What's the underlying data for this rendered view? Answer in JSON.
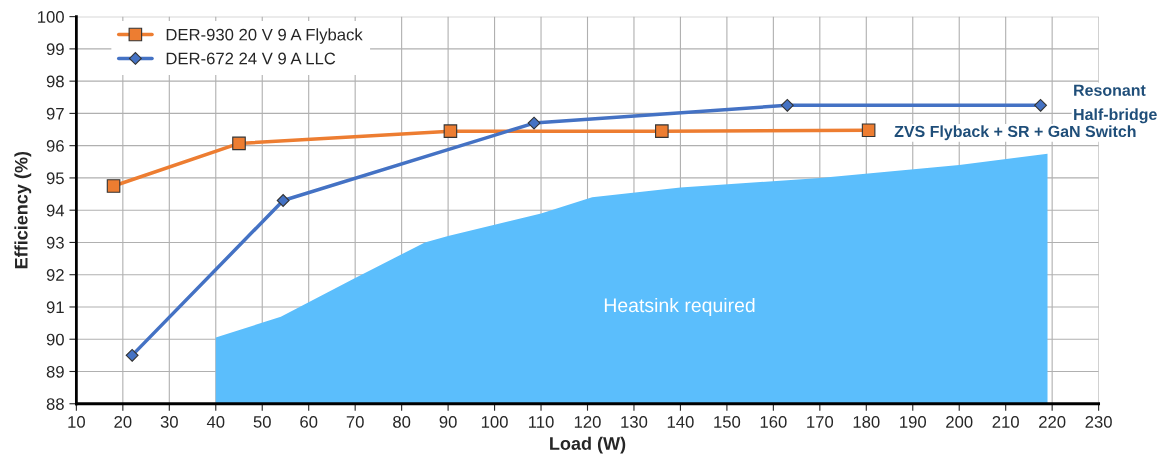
{
  "chart_data": {
    "type": "line",
    "xlabel": "Load (W)",
    "ylabel": "Efficiency (%)",
    "series": [
      {
        "type": "area",
        "color": "#5bbefc",
        "x": [
          40,
          54,
          70,
          85,
          90,
          110,
          121,
          140,
          170,
          200,
          219
        ],
        "values": [
          90.05,
          90.7,
          91.9,
          93.0,
          93.2,
          93.9,
          94.4,
          94.7,
          95.0,
          95.4,
          95.75
        ]
      },
      {
        "name": "DER-930 20 V 9 A Flyback",
        "color": "#ed7d31",
        "marker": "square",
        "x": [
          18,
          45,
          90.5,
          136,
          180.5
        ],
        "values": [
          94.75,
          96.07,
          96.45,
          96.45,
          96.48
        ]
      },
      {
        "name": "DER-672 24 V 9 A LLC",
        "color": "#4472c4",
        "marker": "diamond",
        "x": [
          22,
          54.5,
          108.5,
          163,
          217.5
        ],
        "values": [
          89.5,
          94.3,
          96.7,
          97.25,
          97.25
        ]
      }
    ],
    "annotations": [
      "Heatsink required",
      "Resonant\nHalf-bridge",
      "ZVS Flyback + SR + GaN Switch"
    ],
    "xlim": [
      10,
      230
    ],
    "xticks": [
      10,
      20,
      30,
      40,
      50,
      60,
      70,
      80,
      90,
      100,
      110,
      120,
      130,
      140,
      150,
      160,
      170,
      180,
      190,
      200,
      210,
      220,
      230
    ],
    "ylim": [
      88,
      100
    ],
    "yticks": [
      88,
      89,
      90,
      91,
      92,
      93,
      94,
      95,
      96,
      97,
      98,
      99,
      100
    ],
    "grid": true,
    "legend": "top left",
    "line_style": "solid"
  }
}
